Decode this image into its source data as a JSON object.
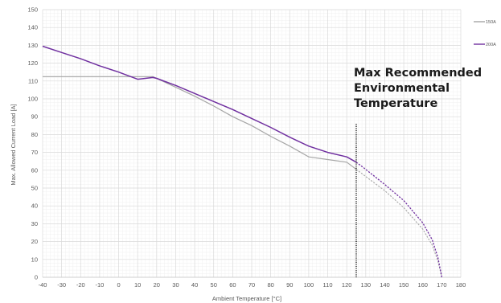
{
  "chart_data": {
    "type": "line",
    "xlabel": "Ambient Temperature [°C]",
    "ylabel": "Max. Allowed Current Load [A]",
    "xlim": [
      -40,
      180
    ],
    "ylim": [
      0,
      150
    ],
    "x_ticks": [
      -40,
      -30,
      -20,
      -10,
      0,
      10,
      20,
      30,
      40,
      50,
      60,
      70,
      80,
      90,
      100,
      110,
      120,
      130,
      140,
      150,
      160,
      170,
      180
    ],
    "y_ticks": [
      0,
      10,
      20,
      30,
      40,
      50,
      60,
      70,
      80,
      90,
      100,
      110,
      120,
      130,
      140,
      150
    ],
    "grid": true,
    "legend_position": "right",
    "series": [
      {
        "name": "150A",
        "color": "#a6a6a6",
        "solid_points": [
          [
            -40,
            112.5
          ],
          [
            0,
            112.5
          ],
          [
            18,
            112.5
          ],
          [
            30,
            106.5
          ],
          [
            40,
            101.5
          ],
          [
            50,
            96
          ],
          [
            60,
            90
          ],
          [
            70,
            85
          ],
          [
            80,
            79
          ],
          [
            90,
            73.5
          ],
          [
            100,
            67.5
          ],
          [
            110,
            66
          ],
          [
            120,
            64.5
          ],
          [
            125,
            60.5
          ]
        ],
        "dashed_points": [
          [
            125,
            60.5
          ],
          [
            130,
            56.5
          ],
          [
            140,
            48.5
          ],
          [
            150,
            39
          ],
          [
            160,
            27
          ],
          [
            165,
            18
          ],
          [
            168,
            9
          ],
          [
            170,
            0
          ]
        ]
      },
      {
        "name": "200A",
        "color": "#7030a0",
        "solid_points": [
          [
            -40,
            129.5
          ],
          [
            -30,
            126
          ],
          [
            -20,
            122.5
          ],
          [
            -10,
            118.5
          ],
          [
            0,
            115
          ],
          [
            10,
            111
          ],
          [
            18,
            112
          ],
          [
            20,
            111.5
          ],
          [
            30,
            107.5
          ],
          [
            40,
            103
          ],
          [
            50,
            98.5
          ],
          [
            60,
            94
          ],
          [
            70,
            89
          ],
          [
            80,
            84
          ],
          [
            90,
            78.5
          ],
          [
            100,
            73.5
          ],
          [
            110,
            70
          ],
          [
            120,
            67.5
          ],
          [
            125,
            64.5
          ]
        ],
        "dashed_points": [
          [
            125,
            64.5
          ],
          [
            130,
            60.5
          ],
          [
            140,
            52
          ],
          [
            150,
            43
          ],
          [
            160,
            30.5
          ],
          [
            165,
            21
          ],
          [
            168,
            11
          ],
          [
            170,
            0
          ]
        ]
      }
    ],
    "annotations": [
      {
        "lines": [
          "Max Recommended",
          "Environmental",
          "Temperature"
        ],
        "marker_x": 125,
        "marker_y_range": [
          0,
          86
        ]
      }
    ]
  }
}
